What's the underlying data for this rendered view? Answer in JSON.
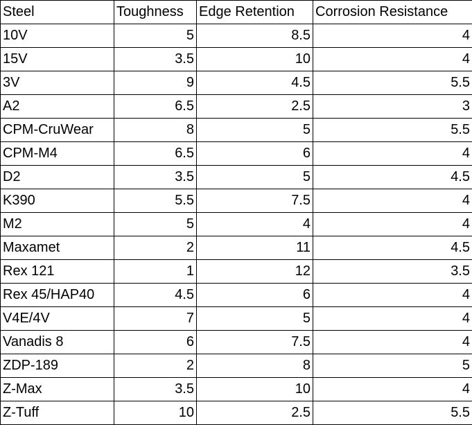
{
  "table": {
    "header": [
      "Steel",
      "Toughness",
      "Edge Retention",
      "Corrosion Resistance"
    ],
    "rows": [
      [
        "10V",
        5,
        8.5,
        4
      ],
      [
        "15V",
        3.5,
        10,
        4
      ],
      [
        "3V",
        9,
        4.5,
        5.5
      ],
      [
        "A2",
        6.5,
        2.5,
        3
      ],
      [
        "CPM-CruWear",
        8,
        5,
        5.5
      ],
      [
        "CPM-M4",
        6.5,
        6,
        4
      ],
      [
        "D2",
        3.5,
        5,
        4.5
      ],
      [
        "K390",
        5.5,
        7.5,
        4
      ],
      [
        "M2",
        5,
        4,
        4
      ],
      [
        "Maxamet",
        2,
        11,
        4.5
      ],
      [
        "Rex 121",
        1,
        12,
        3.5
      ],
      [
        "Rex 45/HAP40",
        4.5,
        6,
        4
      ],
      [
        "V4E/4V",
        7,
        5,
        4
      ],
      [
        "Vanadis 8",
        6,
        7.5,
        4
      ],
      [
        "ZDP-189",
        2,
        8,
        5
      ],
      [
        "Z-Max",
        3.5,
        10,
        4
      ],
      [
        "Z-Tuff",
        10,
        2.5,
        5.5
      ]
    ]
  }
}
